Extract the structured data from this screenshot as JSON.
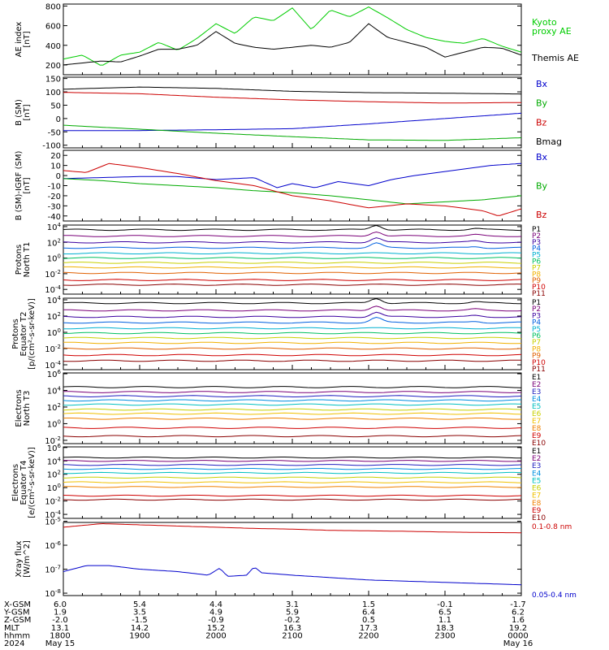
{
  "panels": [
    {
      "id": "ae",
      "ylabel": [
        "AE index",
        "[nT]"
      ],
      "ticks": [
        "800",
        "600",
        "400",
        "200"
      ],
      "tickvals": [
        800,
        600,
        400,
        200
      ],
      "ylim": [
        100,
        820
      ],
      "log": false,
      "legend": [
        {
          "text": "Kyoto",
          "color": "#00cc00"
        },
        {
          "text": "proxy AE",
          "color": "#00cc00"
        },
        {
          "text": "",
          "color": "#000000"
        },
        {
          "text": "Themis AE",
          "color": "#000000"
        }
      ]
    },
    {
      "id": "bsm",
      "ylabel": [
        "B (SM)",
        "[nT]"
      ],
      "ticks": [
        "150",
        "100",
        "50",
        "0",
        "-50",
        "-100"
      ],
      "tickvals": [
        150,
        100,
        50,
        0,
        -50,
        -100
      ],
      "ylim": [
        -110,
        155
      ],
      "log": false,
      "legend": [
        {
          "text": "Bx",
          "color": "#0000cc"
        },
        {
          "text": "By",
          "color": "#00aa00"
        },
        {
          "text": "Bz",
          "color": "#cc0000"
        },
        {
          "text": "Bmag",
          "color": "#000000"
        }
      ]
    },
    {
      "id": "bigrf",
      "ylabel": [
        "B (SM)-IGRF (SM)",
        "[nT]"
      ],
      "ticks": [
        "20",
        "10",
        "0",
        "-10",
        "-20",
        "-30",
        "-40"
      ],
      "tickvals": [
        20,
        10,
        0,
        -10,
        -20,
        -30,
        -40
      ],
      "ylim": [
        -45,
        25
      ],
      "log": false,
      "legend": [
        {
          "text": "Bx",
          "color": "#0000cc"
        },
        {
          "text": "By",
          "color": "#00aa00"
        },
        {
          "text": "Bz",
          "color": "#cc0000"
        }
      ]
    },
    {
      "id": "pt1",
      "ylabel": [
        "Protons",
        "North T1"
      ],
      "ticks": [
        "10^4",
        "10^2",
        "10^0",
        "10^-2",
        "10^-4"
      ],
      "tickvals": [
        4,
        2,
        0,
        -2,
        -4
      ],
      "ylim": [
        -4.6,
        4.2
      ],
      "log": true,
      "legend": [
        {
          "text": "P1",
          "color": "#000000"
        },
        {
          "text": "P2",
          "color": "#7a0078"
        },
        {
          "text": "P3",
          "color": "#3a00a0"
        },
        {
          "text": "P4",
          "color": "#0060e0"
        },
        {
          "text": "P5",
          "color": "#00b0d0"
        },
        {
          "text": "P6",
          "color": "#00c060"
        },
        {
          "text": "P7",
          "color": "#c8d000"
        },
        {
          "text": "P8",
          "color": "#f0b000"
        },
        {
          "text": "P9",
          "color": "#e06000"
        },
        {
          "text": "P10",
          "color": "#d00000"
        },
        {
          "text": "P11",
          "color": "#8a0000"
        }
      ]
    },
    {
      "id": "pt2",
      "ylabel": [
        "Protons",
        "Equator T2",
        "[p/(cm²-s-sr-keV)]"
      ],
      "ticks": [
        "10^4",
        "10^2",
        "10^0",
        "10^-2",
        "10^-4"
      ],
      "tickvals": [
        4,
        2,
        0,
        -2,
        -4
      ],
      "ylim": [
        -4.6,
        4.2
      ],
      "log": true,
      "legend": [
        {
          "text": "P1",
          "color": "#000000"
        },
        {
          "text": "P2",
          "color": "#7a0078"
        },
        {
          "text": "P3",
          "color": "#3a00a0"
        },
        {
          "text": "P4",
          "color": "#0060e0"
        },
        {
          "text": "P5",
          "color": "#00b0d0"
        },
        {
          "text": "P6",
          "color": "#00c060"
        },
        {
          "text": "P7",
          "color": "#c8d000"
        },
        {
          "text": "P8",
          "color": "#f0b000"
        },
        {
          "text": "P9",
          "color": "#e06000"
        },
        {
          "text": "P10",
          "color": "#d00000"
        },
        {
          "text": "P11",
          "color": "#8a0000"
        }
      ]
    },
    {
      "id": "et3",
      "ylabel": [
        "Electrons",
        "North T3"
      ],
      "ticks": [
        "10^6",
        "10^4",
        "10^2",
        "10^0",
        "10^-2"
      ],
      "tickvals": [
        6,
        4,
        2,
        0,
        -2
      ],
      "ylim": [
        -2.4,
        6.1
      ],
      "log": true,
      "legend": [
        {
          "text": "E1",
          "color": "#000000"
        },
        {
          "text": "E2",
          "color": "#7a0078"
        },
        {
          "text": "E3",
          "color": "#2020c0"
        },
        {
          "text": "E4",
          "color": "#0090e0"
        },
        {
          "text": "E5",
          "color": "#00c0c0"
        },
        {
          "text": "E6",
          "color": "#c8d000"
        },
        {
          "text": "E7",
          "color": "#f0c000"
        },
        {
          "text": "E8",
          "color": "#f08000"
        },
        {
          "text": "E9",
          "color": "#d00000"
        },
        {
          "text": "E10",
          "color": "#8a0000"
        }
      ]
    },
    {
      "id": "et4",
      "ylabel": [
        "Electrons",
        "Equator T4",
        "[e/(cm²-s-sr-keV)]"
      ],
      "ticks": [
        "10^6",
        "10^4",
        "10^2",
        "10^0",
        "10^-2",
        "10^-4"
      ],
      "tickvals": [
        6,
        4,
        2,
        0,
        -2,
        -4
      ],
      "ylim": [
        -4.6,
        6.1
      ],
      "log": true,
      "legend": [
        {
          "text": "E1",
          "color": "#000000"
        },
        {
          "text": "E2",
          "color": "#7a0078"
        },
        {
          "text": "E3",
          "color": "#2020c0"
        },
        {
          "text": "E4",
          "color": "#0090e0"
        },
        {
          "text": "E5",
          "color": "#00c0c0"
        },
        {
          "text": "E6",
          "color": "#c8d000"
        },
        {
          "text": "E7",
          "color": "#f0c000"
        },
        {
          "text": "E8",
          "color": "#f08000"
        },
        {
          "text": "E9",
          "color": "#d00000"
        },
        {
          "text": "E10",
          "color": "#8a0000"
        }
      ]
    },
    {
      "id": "xray",
      "ylabel": [
        "Xray flux",
        "[W/m^2]"
      ],
      "ticks": [
        "10^-5",
        "10^-6",
        "10^-7",
        "10^-8"
      ],
      "tickvals": [
        -5,
        -6,
        -7,
        -8
      ],
      "ylim": [
        -8.1,
        -5.05
      ],
      "log": true,
      "legend": [
        {
          "text": "0.1-0.8 nm",
          "color": "#cc0000"
        },
        {
          "text": "0.05-0.4 nm",
          "color": "#0000cc"
        }
      ]
    }
  ],
  "x_axis": {
    "rows": [
      {
        "label": "X-GSM",
        "values": [
          "6.0",
          "5.4",
          "4.4",
          "3.1",
          "1.5",
          "-0.1",
          "-1.7"
        ]
      },
      {
        "label": "Y-GSM",
        "values": [
          "1.9",
          "3.5",
          "4.9",
          "5.9",
          "6.4",
          "6.5",
          "6.2"
        ]
      },
      {
        "label": "Z-GSM",
        "values": [
          "-2.0",
          "-1.5",
          "-0.9",
          "-0.2",
          "0.5",
          "1.1",
          "1.6"
        ]
      },
      {
        "label": "MLT",
        "values": [
          "13.1",
          "14.2",
          "15.2",
          "16.3",
          "17.3",
          "18.3",
          "19.2"
        ]
      },
      {
        "label": "hhmm",
        "values": [
          "1800",
          "1900",
          "2000",
          "2100",
          "2200",
          "2300",
          "0000"
        ]
      },
      {
        "label": "2024",
        "values": [
          "May 15",
          "",
          "",
          "",
          "",
          "",
          "May 16"
        ]
      }
    ]
  },
  "chart_data": {
    "type": "line",
    "x_unit": "hours UT (May 15 18:00 to May 16 00:00)",
    "xlim": [
      18,
      24
    ],
    "panels": {
      "ae": {
        "series": [
          {
            "name": "Kyoto proxy AE",
            "color": "#00cc00",
            "x": [
              18,
              18.25,
              18.5,
              18.75,
              19,
              19.25,
              19.5,
              19.75,
              20,
              20.25,
              20.5,
              20.75,
              21,
              21.25,
              21.5,
              21.75,
              22,
              22.25,
              22.5,
              22.75,
              23,
              23.25,
              23.5,
              23.75,
              24
            ],
            "y": [
              260,
              300,
              190,
              300,
              330,
              430,
              350,
              470,
              620,
              520,
              690,
              650,
              780,
              560,
              760,
              690,
              790,
              680,
              560,
              480,
              440,
              420,
              470,
              390,
              330
            ]
          },
          {
            "name": "Themis AE",
            "color": "#000000",
            "x": [
              18,
              18.25,
              18.5,
              18.75,
              19,
              19.25,
              19.5,
              19.75,
              20,
              20.25,
              20.5,
              20.75,
              21,
              21.25,
              21.5,
              21.75,
              22,
              22.25,
              22.5,
              22.75,
              23,
              23.25,
              23.5,
              23.75,
              24
            ],
            "y": [
              200,
              220,
              240,
              230,
              290,
              360,
              360,
              400,
              540,
              420,
              380,
              360,
              380,
              400,
              380,
              430,
              620,
              480,
              430,
              380,
              280,
              330,
              380,
              370,
              300
            ]
          }
        ]
      },
      "bsm": {
        "series": [
          {
            "name": "Bmag",
            "color": "#000000",
            "x": [
              18,
              19,
              20,
              21,
              22,
              23,
              24
            ],
            "y": [
              110,
              118,
              113,
              102,
              97,
              95,
              92
            ]
          },
          {
            "name": "Bz",
            "color": "#cc0000",
            "x": [
              18,
              19,
              20,
              21,
              22,
              23,
              24
            ],
            "y": [
              98,
              93,
              80,
              70,
              63,
              58,
              60
            ]
          },
          {
            "name": "Bx",
            "color": "#0000cc",
            "x": [
              18,
              19,
              20,
              21,
              22,
              23,
              24
            ],
            "y": [
              -45,
              -45,
              -42,
              -38,
              -20,
              0,
              20
            ]
          },
          {
            "name": "By",
            "color": "#00aa00",
            "x": [
              18,
              19,
              20,
              21,
              22,
              23,
              24
            ],
            "y": [
              -25,
              -40,
              -55,
              -68,
              -80,
              -82,
              -72
            ]
          }
        ]
      },
      "bigrf": {
        "series": [
          {
            "name": "Bx",
            "color": "#0000cc",
            "x": [
              18,
              18.5,
              19,
              19.5,
              20,
              20.5,
              20.8,
              21,
              21.3,
              21.6,
              22,
              22.3,
              22.6,
              23,
              23.3,
              23.6,
              24
            ],
            "y": [
              -3,
              -2,
              -1,
              -1,
              -4,
              -2,
              -12,
              -8,
              -12,
              -6,
              -10,
              -4,
              0,
              4,
              7,
              10,
              12
            ]
          },
          {
            "name": "By",
            "color": "#00aa00",
            "x": [
              18,
              18.5,
              19,
              19.5,
              20,
              20.5,
              21,
              21.5,
              22,
              22.5,
              23,
              23.5,
              24
            ],
            "y": [
              -3,
              -5,
              -8,
              -10,
              -12,
              -15,
              -17,
              -20,
              -24,
              -28,
              -26,
              -24,
              -20
            ]
          },
          {
            "name": "Bz",
            "color": "#cc0000",
            "x": [
              18,
              18.3,
              18.6,
              19,
              19.5,
              20,
              20.5,
              21,
              21.5,
              22,
              22.5,
              23,
              23.5,
              23.7,
              24
            ],
            "y": [
              5,
              3,
              12,
              8,
              2,
              -5,
              -10,
              -20,
              -25,
              -32,
              -28,
              -30,
              -35,
              -40,
              -33
            ]
          }
        ]
      },
      "pt1": {
        "channels_log10": [
          3.6,
          2.8,
          2.0,
          1.3,
          0.6,
          0.0,
          -0.6,
          -1.2,
          -1.9,
          -2.8,
          -3.4
        ],
        "peak_hour": 22.1,
        "peak_amp": 0.6
      },
      "pt2": {
        "channels_log10": [
          3.6,
          2.7,
          1.9,
          1.2,
          0.5,
          -0.1,
          -0.7,
          -1.3,
          -2.0,
          -2.8,
          -3.5
        ],
        "peak_hour": 22.1,
        "peak_amp": 0.6
      },
      "et3": {
        "channels_log10": [
          4.4,
          3.8,
          3.3,
          2.8,
          2.3,
          1.7,
          1.2,
          0.6,
          -0.5,
          -1.5
        ]
      },
      "et4": {
        "channels_log10": [
          4.5,
          4.0,
          3.4,
          2.8,
          2.2,
          1.5,
          0.8,
          0.1,
          -1.2,
          -1.8
        ]
      },
      "xray": {
        "series": [
          {
            "name": "0.1-0.8 nm",
            "color": "#cc0000",
            "x": [
              18,
              18.5,
              19,
              19.5,
              20,
              20.5,
              21,
              21.5,
              22,
              22.5,
              23,
              23.5,
              24
            ],
            "y": [
              -5.25,
              -5.1,
              -5.15,
              -5.2,
              -5.25,
              -5.3,
              -5.33,
              -5.38,
              -5.4,
              -5.42,
              -5.45,
              -5.47,
              -5.48
            ]
          },
          {
            "name": "0.05-0.4 nm",
            "color": "#0000cc",
            "x": [
              18,
              18.3,
              18.6,
              19,
              19.5,
              19.9,
              20.05,
              20.15,
              20.4,
              20.5,
              20.6,
              21,
              21.5,
              22,
              22.5,
              23,
              23.5,
              24
            ],
            "y": [
              -7.1,
              -6.85,
              -6.85,
              -7.0,
              -7.1,
              -7.25,
              -6.95,
              -7.3,
              -7.25,
              -6.9,
              -7.15,
              -7.25,
              -7.35,
              -7.45,
              -7.5,
              -7.55,
              -7.6,
              -7.65
            ]
          }
        ]
      }
    }
  }
}
